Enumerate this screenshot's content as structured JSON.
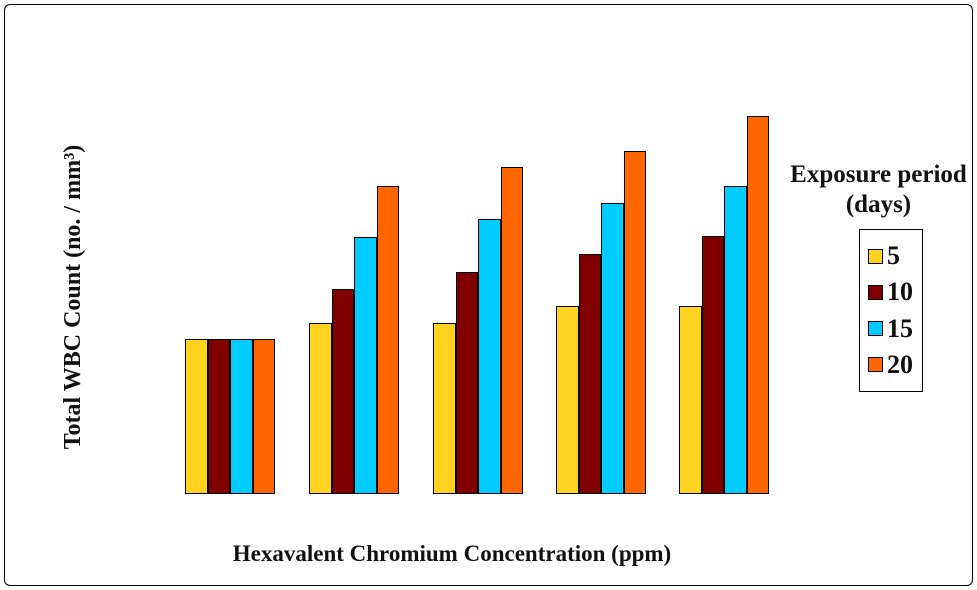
{
  "figure": {
    "background": "#ffffff",
    "border_color": "#000000"
  },
  "chart_data": {
    "type": "bar",
    "title": "",
    "xlabel": "Hexavalent Chromium Concentration (ppm)",
    "ylabel": "Total WBC Count (no. / mm³)",
    "categories": [
      "",
      "",
      "",
      "",
      ""
    ],
    "categories_note": "5 concentration groups; no tick labels are rendered on either axis",
    "value_unit": "relative height (y-axis shows no numeric scale)",
    "ylim": [
      0,
      400
    ],
    "grid": false,
    "axis_lines_visible": false,
    "series": [
      {
        "name": "5",
        "color": "#FFD320",
        "values": [
          155,
          171,
          171,
          188,
          188
        ]
      },
      {
        "name": "10",
        "color": "#800000",
        "values": [
          155,
          205,
          222,
          240,
          258
        ]
      },
      {
        "name": "15",
        "color": "#00CCFF",
        "values": [
          155,
          257,
          275,
          291,
          308
        ]
      },
      {
        "name": "20",
        "color": "#FF6600",
        "values": [
          155,
          308,
          327,
          343,
          378
        ]
      }
    ],
    "legend": {
      "title_line1": "Exposure period",
      "title_line2": "(days)",
      "position": "right",
      "entries": [
        {
          "label": "5",
          "color": "#FFD320"
        },
        {
          "label": "10",
          "color": "#800000"
        },
        {
          "label": "15",
          "color": "#00CCFF"
        },
        {
          "label": "20",
          "color": "#FF6600"
        }
      ]
    }
  }
}
